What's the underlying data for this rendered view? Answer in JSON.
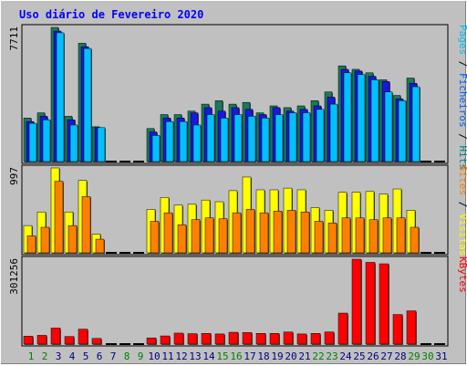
{
  "chart_data": {
    "type": "bar",
    "title": "Uso diário de Fevereiro 2020",
    "days": [
      "1",
      "2",
      "3",
      "4",
      "5",
      "6",
      "7",
      "8",
      "9",
      "10",
      "11",
      "12",
      "13",
      "14",
      "15",
      "16",
      "17",
      "18",
      "19",
      "20",
      "21",
      "22",
      "23",
      "24",
      "25",
      "26",
      "27",
      "28",
      "29",
      "30",
      "31"
    ],
    "weekend_days": [
      "1",
      "2",
      "8",
      "9",
      "15",
      "16",
      "22",
      "23",
      "29",
      "30"
    ],
    "panels": [
      {
        "id": "pages-files-hits",
        "max_label": "7711",
        "ymax": 7711,
        "right_label_parts": [
          {
            "text": "Pages",
            "color": "#00c0ff"
          },
          {
            "text": " / ",
            "color": "#000000"
          },
          {
            "text": "Ficheiros",
            "color": "#0060ff"
          },
          {
            "text": " / ",
            "color": "#000000"
          },
          {
            "text": "Hits",
            "color": "#008080"
          }
        ],
        "series": [
          {
            "key": "hits",
            "color": "#1a7a5a",
            "values": [
              2500,
              2800,
              7711,
              2600,
              6800,
              2000,
              0,
              0,
              0,
              1900,
              2700,
              2700,
              2900,
              3300,
              3500,
              3300,
              3400,
              2800,
              3200,
              3100,
              3200,
              3500,
              4000,
              5500,
              5300,
              5100,
              4700,
              3800,
              4800,
              0,
              0
            ]
          },
          {
            "key": "files",
            "color": "#1818e0",
            "values": [
              2300,
              2600,
              7500,
              2400,
              6600,
              1950,
              0,
              0,
              0,
              1700,
              2500,
              2500,
              2800,
              3100,
              2900,
              3100,
              3000,
              2700,
              3100,
              2900,
              3000,
              3200,
              3700,
              5300,
              5200,
              4900,
              4600,
              3600,
              4500,
              0,
              0
            ]
          },
          {
            "key": "pages",
            "color": "#00c0ff",
            "values": [
              2200,
              2400,
              7400,
              2100,
              6500,
              1950,
              0,
              0,
              0,
              1500,
              2300,
              2300,
              2100,
              2700,
              2500,
              2700,
              2600,
              2500,
              2700,
              2800,
              2800,
              3000,
              3300,
              5100,
              5000,
              4700,
              4000,
              3500,
              4300,
              0,
              0
            ]
          }
        ]
      },
      {
        "id": "visits-sites",
        "max_label": "997",
        "ymax": 997,
        "right_label_parts": [
          {
            "text": "Sites",
            "color": "#ff8000"
          },
          {
            "text": " / ",
            "color": "#000000"
          },
          {
            "text": "Visitas",
            "color": "#ffff00"
          }
        ],
        "series": [
          {
            "key": "visits",
            "color": "#ffff00",
            "values": [
              320,
              480,
              997,
              480,
              850,
              220,
              0,
              0,
              0,
              510,
              650,
              560,
              570,
              620,
              600,
              730,
              890,
              740,
              740,
              760,
              740,
              530,
              500,
              710,
              710,
              720,
              690,
              750,
              500,
              0,
              0
            ]
          },
          {
            "key": "sites",
            "color": "#ff8000",
            "values": [
              200,
              300,
              840,
              320,
              660,
              160,
              0,
              0,
              0,
              370,
              470,
              330,
              390,
              410,
              400,
              470,
              510,
              470,
              490,
              500,
              480,
              370,
              350,
              410,
              410,
              390,
              410,
              410,
              300,
              0,
              0
            ]
          }
        ]
      },
      {
        "id": "kbytes",
        "max_label": "301256",
        "ymax": 301256,
        "right_label_parts": [
          {
            "text": "KBytes",
            "color": "#ff0000"
          }
        ],
        "series": [
          {
            "key": "kbytes",
            "color": "#ff0000",
            "values": [
              28000,
              31000,
              57000,
              27000,
              53000,
              20000,
              0,
              0,
              0,
              22000,
              29000,
              39000,
              37000,
              38000,
              36000,
              42000,
              41000,
              38000,
              38000,
              43000,
              36000,
              38000,
              43000,
              110000,
              301256,
              290000,
              285000,
              105000,
              118000,
              0,
              0
            ]
          }
        ]
      }
    ],
    "colors": {
      "background": "#c0c0c0",
      "plot_border": "#000000",
      "title": "#0000ff",
      "weekday_label": "#000080",
      "weekend_label": "#008000"
    }
  }
}
